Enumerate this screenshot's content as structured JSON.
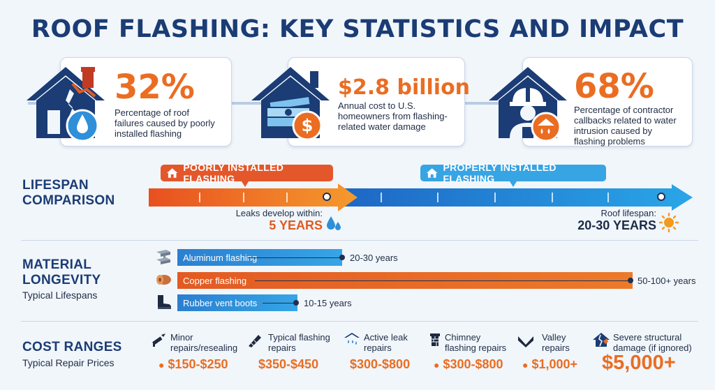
{
  "title": "ROOF FLASHING: KEY STATISTICS AND IMPACT",
  "stats": [
    {
      "value": "32%",
      "desc": [
        "Percentage of roof",
        "failures caused by poorly",
        "installed flashing"
      ],
      "icon": "cracked-house-water-drop-icon"
    },
    {
      "value": "$2.8 billion",
      "desc": [
        "Annual cost to U.S.",
        "homeowners from flashing-",
        "related water damage"
      ],
      "icon": "house-money-dollar-icon"
    },
    {
      "value": "68%",
      "desc": [
        "Percentage of contractor",
        "callbacks related to water",
        "intrusion caused by",
        "flashing problems"
      ],
      "icon": "house-contractor-leak-icon"
    }
  ],
  "lifespan": {
    "title": [
      "LIFESPAN",
      "COMPARISON"
    ],
    "poor_label": "POORLY INSTALLED FLASHING",
    "proper_label": "PROPERLY INSTALLED FLASHING",
    "poor_marker_label": "Leaks develop within:",
    "poor_marker_value": "5 YEARS",
    "proper_marker_label": "Roof lifespan:",
    "proper_marker_value": "20-30 YEARS"
  },
  "materials": {
    "title": [
      "MATERIAL",
      "LONGEVITY"
    ],
    "subtitle": "Typical Lifespans",
    "items": [
      {
        "name": "Aluminum flashing",
        "years": "20-30 years",
        "max_years": 30,
        "icon": "aluminum-beam-icon"
      },
      {
        "name": "Copper flashing",
        "years": "50-100+ years",
        "max_years": 100,
        "icon": "copper-roll-icon"
      },
      {
        "name": "Rubber vent boots",
        "years": "10-15 years",
        "max_years": 15,
        "icon": "rubber-boot-icon"
      }
    ]
  },
  "costs": {
    "title": "COST RANGES",
    "subtitle": "Typical Repair Prices",
    "items": [
      {
        "label": [
          "Minor",
          "repairs/resealing"
        ],
        "value": "$150-$250",
        "icon": "caulk-gun-icon"
      },
      {
        "label": [
          "Typical flashing",
          "repairs"
        ],
        "value": "$350-$450",
        "icon": "flashing-strip-icon"
      },
      {
        "label": [
          "Active leak",
          "repairs"
        ],
        "value": "$300-$800",
        "icon": "roof-leak-icon"
      },
      {
        "label": [
          "Chimney",
          "flashing repairs"
        ],
        "value": "$300-$800",
        "icon": "chimney-icon"
      },
      {
        "label": [
          "Valley",
          "repairs"
        ],
        "value": "$1,000+",
        "icon": "valley-roof-icon"
      },
      {
        "label": [
          "Severe structural",
          "damage (if ignored)"
        ],
        "value": "$5,000+",
        "icon": "damaged-house-icon"
      }
    ]
  },
  "colors": {
    "navy": "#1b3c74",
    "orange": "#ea6d22",
    "blue": "#2f8fd8",
    "light_blue": "#37a4e4"
  }
}
